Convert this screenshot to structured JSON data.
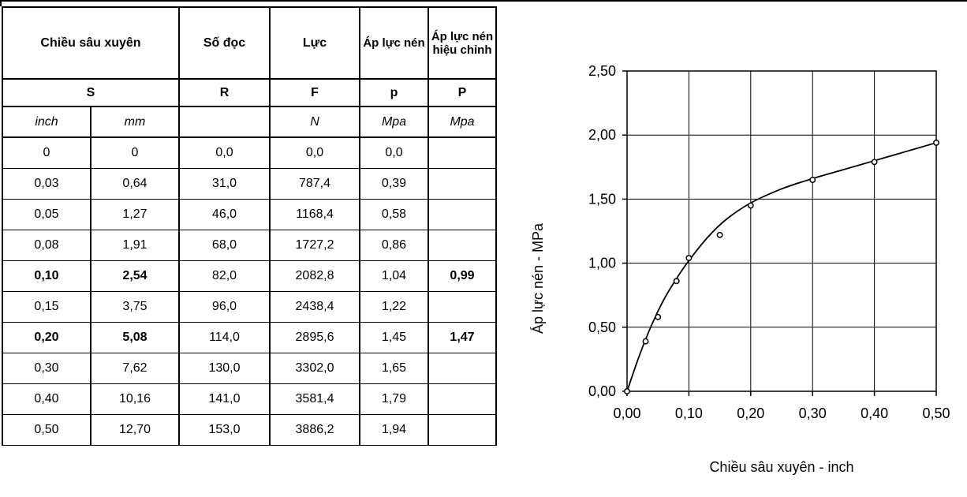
{
  "table": {
    "headers": {
      "depth": "Chiều sâu xuyên",
      "reading": "Số đọc",
      "force": "Lực",
      "pressure": "Áp lực nén",
      "corrected": "Áp lực nén hiệu chỉnh"
    },
    "symbols": {
      "depth": "S",
      "reading": "R",
      "force": "F",
      "pressure": "p",
      "corrected": "P"
    },
    "units": {
      "inch": "inch",
      "mm": "mm",
      "reading": "",
      "force": "N",
      "pressure": "Mpa",
      "corrected": "Mpa"
    },
    "rows": [
      {
        "inch": "0",
        "mm": "0",
        "reading": "0,0",
        "force": "0,0",
        "pressure": "0,0",
        "corrected": "",
        "bold": false
      },
      {
        "inch": "0,03",
        "mm": "0,64",
        "reading": "31,0",
        "force": "787,4",
        "pressure": "0,39",
        "corrected": "",
        "bold": false
      },
      {
        "inch": "0,05",
        "mm": "1,27",
        "reading": "46,0",
        "force": "1168,4",
        "pressure": "0,58",
        "corrected": "",
        "bold": false
      },
      {
        "inch": "0,08",
        "mm": "1,91",
        "reading": "68,0",
        "force": "1727,2",
        "pressure": "0,86",
        "corrected": "",
        "bold": false
      },
      {
        "inch": "0,10",
        "mm": "2,54",
        "reading": "82,0",
        "force": "2082,8",
        "pressure": "1,04",
        "corrected": "0,99",
        "bold": true
      },
      {
        "inch": "0,15",
        "mm": "3,75",
        "reading": "96,0",
        "force": "2438,4",
        "pressure": "1,22",
        "corrected": "",
        "bold": false
      },
      {
        "inch": "0,20",
        "mm": "5,08",
        "reading": "114,0",
        "force": "2895,6",
        "pressure": "1,45",
        "corrected": "1,47",
        "bold": true
      },
      {
        "inch": "0,30",
        "mm": "7,62",
        "reading": "130,0",
        "force": "3302,0",
        "pressure": "1,65",
        "corrected": "",
        "bold": false
      },
      {
        "inch": "0,40",
        "mm": "10,16",
        "reading": "141,0",
        "force": "3581,4",
        "pressure": "1,79",
        "corrected": "",
        "bold": false
      },
      {
        "inch": "0,50",
        "mm": "12,70",
        "reading": "153,0",
        "force": "3886,2",
        "pressure": "1,94",
        "corrected": "",
        "bold": false
      }
    ]
  },
  "chart_data": {
    "type": "scatter",
    "xlabel": "Chiều sâu xuyên - inch",
    "ylabel": "Áp lực nén - MPa",
    "xlim": [
      0,
      0.5
    ],
    "ylim": [
      0,
      2.5
    ],
    "x_ticks": [
      "0,00",
      "0,10",
      "0,20",
      "0,30",
      "0,40",
      "0,50"
    ],
    "x_tick_values": [
      0,
      0.1,
      0.2,
      0.3,
      0.4,
      0.5
    ],
    "y_ticks": [
      "0,00",
      "0,50",
      "1,00",
      "1,50",
      "2,00",
      "2,50"
    ],
    "y_tick_values": [
      0,
      0.5,
      1.0,
      1.5,
      2.0,
      2.5
    ],
    "grid": true,
    "series": [
      {
        "x": [
          0,
          0.03,
          0.05,
          0.08,
          0.1,
          0.15,
          0.2,
          0.3,
          0.4,
          0.5
        ],
        "y": [
          0,
          0.39,
          0.58,
          0.86,
          1.04,
          1.22,
          1.45,
          1.65,
          1.79,
          1.94
        ]
      }
    ],
    "trend_line": {
      "x": [
        0,
        0.02,
        0.04,
        0.06,
        0.08,
        0.1,
        0.13,
        0.16,
        0.2,
        0.25,
        0.3,
        0.35,
        0.4,
        0.45,
        0.5
      ],
      "y": [
        0,
        0.28,
        0.52,
        0.72,
        0.88,
        1.02,
        1.2,
        1.34,
        1.47,
        1.58,
        1.66,
        1.73,
        1.8,
        1.87,
        1.94
      ]
    },
    "colors": {
      "marker": "#000000",
      "line": "#000000",
      "grid": "#000000"
    }
  }
}
